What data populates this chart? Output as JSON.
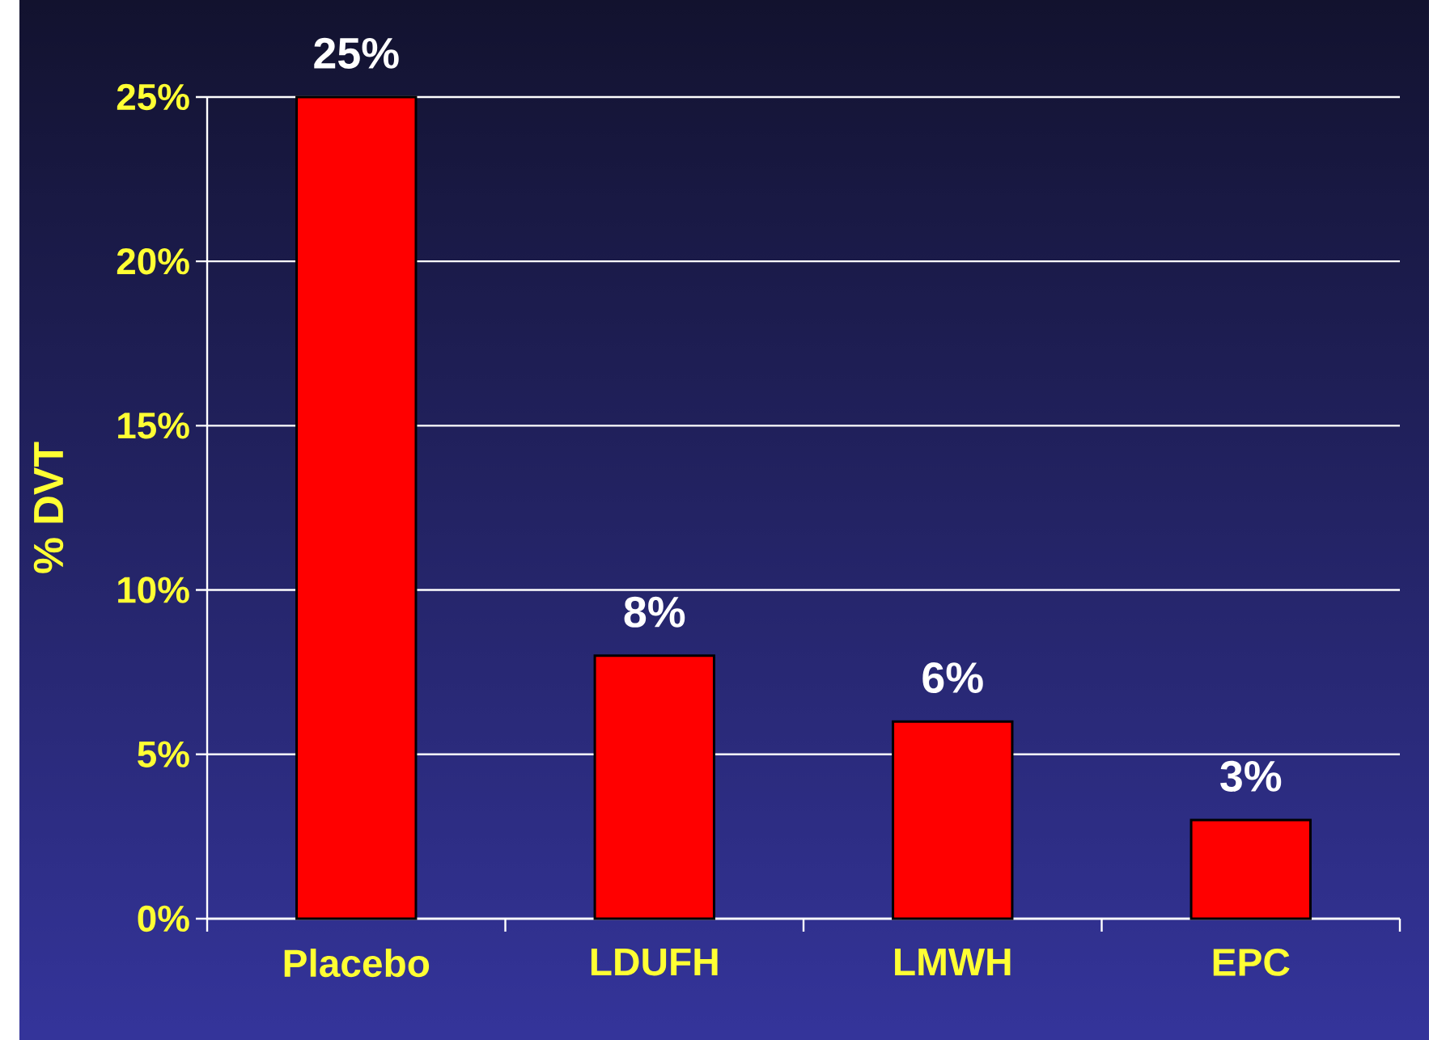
{
  "chart_data": {
    "type": "bar",
    "categories": [
      "Placebo",
      "LDUFH",
      "LMWH",
      "EPC"
    ],
    "values": [
      25,
      8,
      6,
      3
    ],
    "value_labels": [
      "25%",
      "8%",
      "6%",
      "3%"
    ],
    "color": "#ff0000",
    "ylabel": "% DVT",
    "ylim": [
      0,
      25
    ],
    "yticks": [
      {
        "value": 0,
        "label": "0%"
      },
      {
        "value": 5,
        "label": "5%"
      },
      {
        "value": 10,
        "label": "10%"
      },
      {
        "value": 15,
        "label": "15%"
      },
      {
        "value": 20,
        "label": "20%"
      },
      {
        "value": 25,
        "label": "25%"
      }
    ],
    "grid": "y"
  }
}
